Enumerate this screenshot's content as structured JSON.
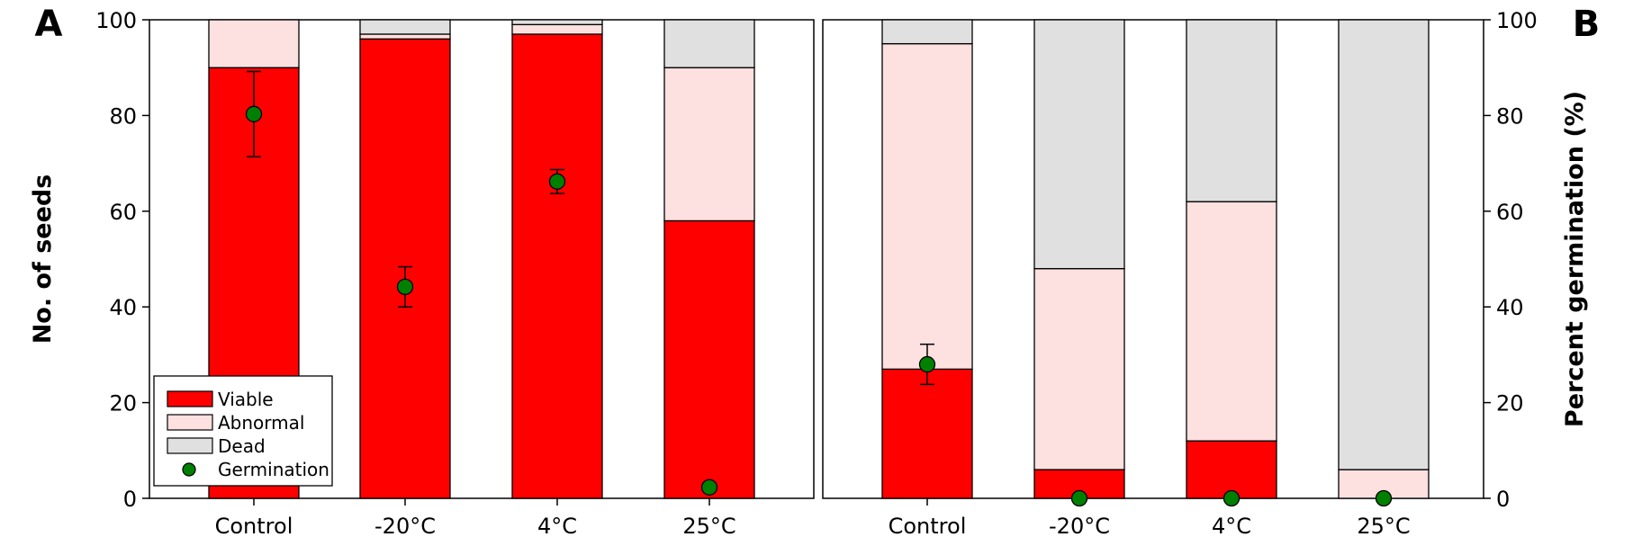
{
  "chart_data": [
    {
      "panel_label": "A",
      "type": "bar",
      "stacked": true,
      "categories": [
        "Control",
        "-20°C",
        "4°C",
        "25°C"
      ],
      "ylabel": "No. of seeds",
      "ylim": [
        0,
        100
      ],
      "yticks": [
        "0",
        "20",
        "40",
        "60",
        "80",
        "100"
      ],
      "grid": false,
      "legend_position": "bottom-left",
      "series": [
        {
          "name": "Viable",
          "values": [
            90,
            96,
            97,
            58
          ],
          "color": "#ff0000"
        },
        {
          "name": "Abnormal",
          "values": [
            10,
            1,
            2,
            32
          ],
          "color": "#fde0e0"
        },
        {
          "name": "Dead",
          "values": [
            0,
            3,
            1,
            10
          ],
          "color": "#e0e0e0"
        }
      ],
      "germination": {
        "name": "Germination",
        "color": "#008000",
        "values": [
          80.3,
          44.2,
          66.2,
          2.3
        ],
        "error": [
          8.9,
          4.2,
          2.5,
          0
        ]
      }
    },
    {
      "panel_label": "B",
      "type": "bar",
      "stacked": true,
      "categories": [
        "Control",
        "-20°C",
        "4°C",
        "25°C"
      ],
      "ylabel": "Percent germination (%)",
      "ylim": [
        0,
        100
      ],
      "yticks": [
        "0",
        "20",
        "40",
        "60",
        "80",
        "100"
      ],
      "grid": false,
      "series": [
        {
          "name": "Viable",
          "values": [
            27,
            6,
            12,
            0
          ],
          "color": "#ff0000"
        },
        {
          "name": "Abnormal",
          "values": [
            68,
            42,
            50,
            6
          ],
          "color": "#fde0e0"
        },
        {
          "name": "Dead",
          "values": [
            5,
            52,
            38,
            94
          ],
          "color": "#e0e0e0"
        }
      ],
      "germination": {
        "name": "Germination",
        "color": "#008000",
        "values": [
          28,
          0,
          0,
          0
        ],
        "error": [
          4.2,
          0,
          0,
          0
        ]
      }
    }
  ]
}
